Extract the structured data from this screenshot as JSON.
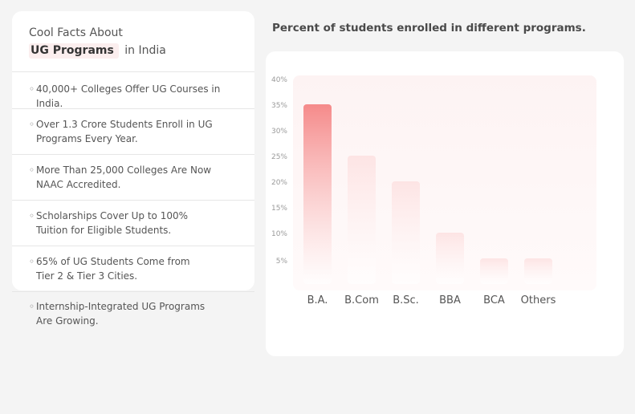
{
  "facts": {
    "title_line1": "Cool Facts About",
    "title_highlight": "UG Programs",
    "title_rest": "in India",
    "bullet": "◦",
    "items": [
      "40,000+ Colleges Offer UG Courses in India.",
      "Over 1.3 Crore Students Enroll in UG\nPrograms Every Year.",
      "More Than 25,000 Colleges Are Now\nNAAC Accredited.",
      "Scholarships Cover Up to 100%\nTuition for Eligible Students.",
      "65% of UG Students Come from\nTier 2 & Tier 3 Cities.",
      "Internship-Integrated UG Programs\nAre Growing."
    ]
  },
  "chart_title": "Percent of students enrolled in different programs.",
  "colors": {
    "bar_top": "#f58a8a",
    "bar_light": "#fde4e4",
    "plot_bg": "#fdf6f6"
  },
  "chart_data": {
    "type": "bar",
    "title": "Percent of students enrolled in different programs.",
    "categories": [
      "B.A.",
      "B.Com",
      "B.Sc.",
      "BBA",
      "BCA",
      "Others"
    ],
    "values": [
      35,
      25,
      20,
      10,
      5,
      5
    ],
    "yticks": [
      "5%",
      "10%",
      "15%",
      "20%",
      "25%",
      "30%",
      "35%",
      "40%"
    ],
    "ylim": [
      0,
      40
    ],
    "xlabel": "",
    "ylabel": ""
  }
}
